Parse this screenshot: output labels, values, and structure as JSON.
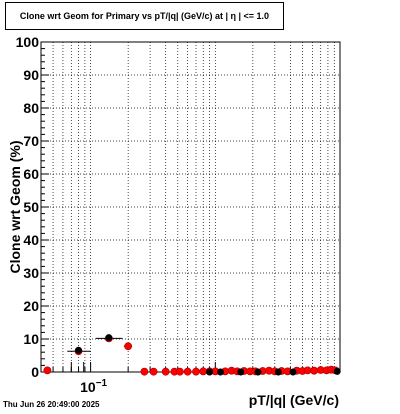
{
  "title": "Clone wrt Geom for Primary vs pT/|q| (GeV/c) at |  η  | <= 1.0",
  "timestamp": "Thu Jun 26 20:49:00 2025",
  "chart_data": {
    "type": "scatter",
    "title": "Clone wrt Geom for Primary vs pT/|q| (GeV/c) at |  η  | <= 1.0",
    "xlabel": "pT/|q| (GeV/c)",
    "ylabel": "Clone wrt Geom (%)",
    "x_scale": "log",
    "xlim": [
      0.04,
      10
    ],
    "ylim": [
      0,
      100
    ],
    "yticks": [
      0,
      10,
      20,
      30,
      40,
      50,
      60,
      70,
      80,
      90,
      100
    ],
    "xtick_labels": [
      {
        "value": 0.1,
        "label": "10^{-1}"
      }
    ],
    "grid": true,
    "series": [
      {
        "marker_color": "#ff0000",
        "points": [
          {
            "x": 0.045,
            "y": 0.5
          },
          {
            "x": 0.08,
            "y": 6.3,
            "ylo": 5.3,
            "yhi": 7.3,
            "xlo": 0.065,
            "xhi": 0.1
          },
          {
            "x": 0.14,
            "y": 10.2,
            "ylo": 9.4,
            "yhi": 11.0,
            "xlo": 0.11,
            "xhi": 0.18
          },
          {
            "x": 0.2,
            "y": 7.8,
            "xlo": 0.185,
            "xhi": 0.215
          },
          {
            "x": 0.27,
            "y": 0.1
          },
          {
            "x": 0.32,
            "y": 0.1
          },
          {
            "x": 0.4,
            "y": 0.1
          },
          {
            "x": 0.47,
            "y": 0.1
          },
          {
            "x": 0.52,
            "y": 0.1
          },
          {
            "x": 0.6,
            "y": 0.1
          },
          {
            "x": 0.7,
            "y": 0.1
          },
          {
            "x": 0.8,
            "y": 0.2
          },
          {
            "x": 0.9,
            "y": 0.2
          },
          {
            "x": 1.0,
            "y": 0.2
          },
          {
            "x": 1.2,
            "y": 0.2
          },
          {
            "x": 1.35,
            "y": 0.4
          },
          {
            "x": 1.5,
            "y": 0.2
          },
          {
            "x": 1.7,
            "y": 0.3
          },
          {
            "x": 1.9,
            "y": 0.2
          },
          {
            "x": 2.1,
            "y": 0.2
          },
          {
            "x": 2.4,
            "y": 0.3
          },
          {
            "x": 2.7,
            "y": 0.4
          },
          {
            "x": 3.0,
            "y": 0.2
          },
          {
            "x": 3.4,
            "y": 0.3
          },
          {
            "x": 3.8,
            "y": 0.2
          },
          {
            "x": 4.5,
            "y": 0.4
          },
          {
            "x": 5.0,
            "y": 0.3
          },
          {
            "x": 5.5,
            "y": 0.5
          },
          {
            "x": 6.2,
            "y": 0.4
          },
          {
            "x": 7.0,
            "y": 0.6
          },
          {
            "x": 7.8,
            "y": 0.5
          },
          {
            "x": 8.5,
            "y": 0.7
          },
          {
            "x": 9.2,
            "y": 0.5
          }
        ]
      },
      {
        "marker_color": "#000000",
        "points": [
          {
            "x": 0.08,
            "y": 6.6
          },
          {
            "x": 0.14,
            "y": 10.4
          },
          {
            "x": 0.9,
            "y": 0.0
          },
          {
            "x": 1.1,
            "y": 0.0
          },
          {
            "x": 1.6,
            "y": 0.0
          },
          {
            "x": 2.2,
            "y": 0.0
          },
          {
            "x": 3.2,
            "y": 0.0
          },
          {
            "x": 4.2,
            "y": 0.0
          },
          {
            "x": 9.5,
            "y": 0.2
          }
        ]
      }
    ]
  }
}
